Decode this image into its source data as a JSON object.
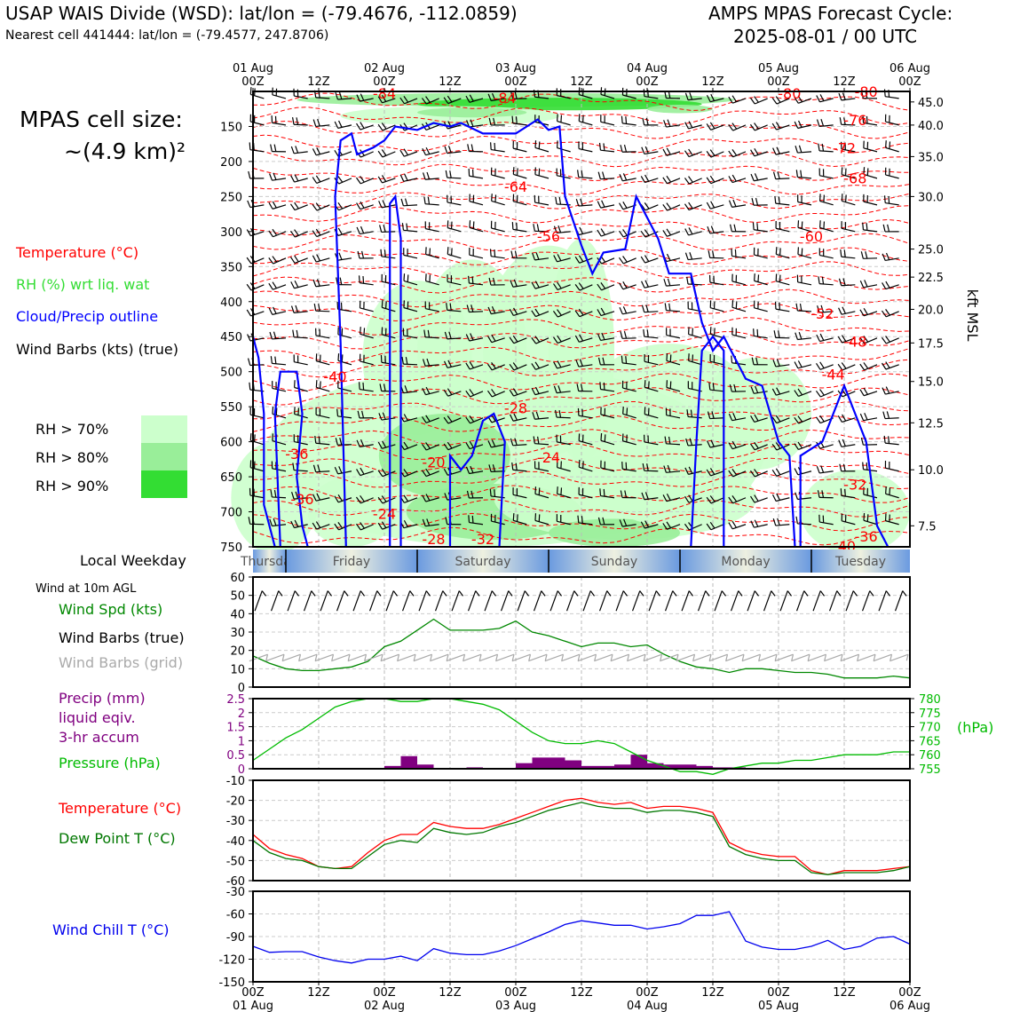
{
  "header": {
    "site_line": "USAP WAIS Divide (WSD): lat/lon = (-79.4676, -112.0859)",
    "cell_line": "Nearest cell 441444: lat/lon = (-79.4577, 247.8706)",
    "cycle_line1": "AMPS MPAS Forecast Cycle:",
    "cycle_line2": "2025-08-01 / 00 UTC"
  },
  "legend": {
    "cell_size_1": "MPAS cell size:",
    "cell_size_2": "~(4.9 km)²",
    "temperature": "Temperature (°C)",
    "rh": "RH (%) wrt liq. wat",
    "cloud": "Cloud/Precip outline",
    "wind_barbs": "Wind Barbs (kts) (true)",
    "rh70": "RH > 70%",
    "rh80": "RH > 80%",
    "rh90": "RH > 90%",
    "local_weekday": "Local Weekday",
    "wind_10m": "Wind at 10m AGL",
    "wind_spd": "Wind Spd (kts)",
    "barbs_true": "Wind Barbs (true)",
    "barbs_grid": "Wind Barbs (grid)",
    "precip1": "Precip (mm)",
    "precip2": "liquid eqiv.",
    "precip3": "3-hr accum",
    "pressure": "Pressure (hPa)",
    "hpa_unit": "(hPa)",
    "temp2": "Temperature (°C)",
    "dewpt": "Dew Point T (°C)",
    "windchill": "Wind Chill T (°C)",
    "kft": "kft MSL"
  },
  "colors": {
    "temp": "#ff0000",
    "rh": "#33cc33",
    "cloud": "#0000ff",
    "wind": "#000000",
    "grid_barb": "#aaaaaa",
    "precip": "#800080",
    "pressure": "#00bb00",
    "dew": "#007700",
    "chill": "#0000ee",
    "rh70": "#ccffcc",
    "rh80": "#99ee99",
    "rh90": "#33dd33"
  },
  "time_axis": {
    "top_dates": [
      "01 Aug",
      "",
      "02 Aug",
      "",
      "03 Aug",
      "",
      "04 Aug",
      "",
      "05 Aug",
      "",
      "06 Aug"
    ],
    "ticks": [
      "00Z",
      "12Z",
      "00Z",
      "12Z",
      "00Z",
      "12Z",
      "00Z",
      "12Z",
      "00Z",
      "12Z",
      "00Z"
    ],
    "bottom_dates": [
      "01 Aug",
      "",
      "02 Aug",
      "",
      "03 Aug",
      "",
      "04 Aug",
      "",
      "05 Aug",
      "",
      "06 Aug"
    ]
  },
  "weekdays": [
    "Thursday",
    "Friday",
    "Saturday",
    "Sunday",
    "Monday",
    "Tuesday"
  ],
  "chart_data": [
    {
      "type": "heatmap",
      "name": "cross-section",
      "ylabel_left": "hPa",
      "ylabel_right": "kft MSL",
      "pressure_levels": [
        150,
        200,
        250,
        300,
        350,
        400,
        450,
        500,
        550,
        600,
        650,
        700,
        750
      ],
      "height_ticks": [
        "45.0",
        "40.0",
        "35.0",
        "30.0",
        "25.0",
        "22.5",
        "20.0",
        "17.5",
        "15.0",
        "12.5",
        "10.0",
        "7.5"
      ],
      "height_tick_pressures": [
        115,
        148,
        193,
        250,
        325,
        365,
        411,
        459,
        514,
        573,
        640,
        720
      ],
      "temp_labels": [
        {
          "text": "-84",
          "hour": 24,
          "p": 104
        },
        {
          "text": "-84",
          "hour": 46,
          "p": 110
        },
        {
          "text": "-80",
          "hour": 98,
          "p": 104
        },
        {
          "text": "-80",
          "hour": 112,
          "p": 101
        },
        {
          "text": "-76",
          "hour": 110,
          "p": 142
        },
        {
          "text": "-72",
          "hour": 108,
          "p": 182
        },
        {
          "text": "-68",
          "hour": 110,
          "p": 225
        },
        {
          "text": "-64",
          "hour": 48,
          "p": 237
        },
        {
          "text": "-60",
          "hour": 102,
          "p": 308
        },
        {
          "text": "-56",
          "hour": 54,
          "p": 308
        },
        {
          "text": "-52",
          "hour": 104,
          "p": 418
        },
        {
          "text": "-48",
          "hour": 110,
          "p": 458
        },
        {
          "text": "-44",
          "hour": 106,
          "p": 505
        },
        {
          "text": "-40",
          "hour": 15,
          "p": 508
        },
        {
          "text": "-28",
          "hour": 48,
          "p": 553
        },
        {
          "text": "-36",
          "hour": 8,
          "p": 618
        },
        {
          "text": "-20",
          "hour": 33,
          "p": 630
        },
        {
          "text": "-24",
          "hour": 54,
          "p": 623
        },
        {
          "text": "-32",
          "hour": 110,
          "p": 662
        },
        {
          "text": "-36",
          "hour": 9,
          "p": 683
        },
        {
          "text": "-24",
          "hour": 24,
          "p": 704
        },
        {
          "text": "-28",
          "hour": 33,
          "p": 740
        },
        {
          "text": "-32",
          "hour": 42,
          "p": 740
        },
        {
          "text": "-36",
          "hour": 112,
          "p": 736
        },
        {
          "text": "-40",
          "hour": 108,
          "p": 750
        }
      ]
    },
    {
      "type": "line",
      "name": "wind-10m",
      "ylim": [
        0,
        60
      ],
      "yticks": [
        0,
        10,
        20,
        30,
        40,
        50,
        60
      ],
      "x_hours": [
        0,
        3,
        6,
        9,
        12,
        15,
        18,
        21,
        24,
        27,
        30,
        33,
        36,
        39,
        42,
        45,
        48,
        51,
        54,
        57,
        60,
        63,
        66,
        69,
        72,
        75,
        78,
        81,
        84,
        87,
        90,
        93,
        96,
        99,
        102,
        105,
        108,
        111,
        114,
        117,
        120
      ],
      "series": [
        {
          "name": "Wind Spd (kts)",
          "values": [
            17,
            13,
            10,
            9,
            9,
            10,
            11,
            14,
            22,
            25,
            31,
            37,
            31,
            31,
            31,
            32,
            36,
            30,
            28,
            25,
            22,
            24,
            24,
            22,
            23,
            18,
            14,
            11,
            10,
            8,
            10,
            10,
            9,
            8,
            8,
            7,
            5,
            5,
            5,
            6,
            5
          ]
        }
      ]
    },
    {
      "type": "bar",
      "name": "precip-pressure",
      "ylim": [
        0,
        2.5
      ],
      "yticks": [
        0,
        0.5,
        1.0,
        1.5,
        2.0,
        2.5
      ],
      "y2lim": [
        755,
        780
      ],
      "y2ticks": [
        755,
        760,
        765,
        770,
        775,
        780
      ],
      "x_hours": [
        24,
        27,
        30,
        39,
        48,
        51,
        54,
        57,
        60,
        63,
        66,
        69,
        72,
        75,
        78,
        81,
        84,
        87
      ],
      "values": [
        0.1,
        0.45,
        0.15,
        0.05,
        0.2,
        0.4,
        0.4,
        0.3,
        0.1,
        0.1,
        0.15,
        0.5,
        0.2,
        0.15,
        0.15,
        0.1,
        0.05,
        0.05
      ],
      "pressure_hours": [
        0,
        3,
        6,
        9,
        12,
        15,
        18,
        21,
        24,
        27,
        30,
        33,
        36,
        39,
        42,
        45,
        48,
        51,
        54,
        57,
        60,
        63,
        66,
        69,
        72,
        75,
        78,
        81,
        84,
        87,
        90,
        93,
        96,
        99,
        102,
        105,
        108,
        111,
        114,
        117,
        120
      ],
      "pressure": [
        758,
        762,
        766,
        769,
        773,
        777,
        779,
        780,
        780,
        779,
        779,
        780,
        780,
        779,
        778,
        776,
        772,
        768,
        765,
        764,
        764,
        765,
        764,
        761,
        758,
        756,
        754,
        754,
        753,
        755,
        756,
        757,
        757,
        758,
        758,
        759,
        760,
        760,
        760,
        761,
        761
      ]
    },
    {
      "type": "line",
      "name": "temp-dew",
      "ylim": [
        -60,
        -10
      ],
      "yticks": [
        -60,
        -50,
        -40,
        -30,
        -20,
        -10
      ],
      "x_hours": [
        0,
        3,
        6,
        9,
        12,
        15,
        18,
        21,
        24,
        27,
        30,
        33,
        36,
        39,
        42,
        45,
        48,
        51,
        54,
        57,
        60,
        63,
        66,
        69,
        72,
        75,
        78,
        81,
        84,
        87,
        90,
        93,
        96,
        99,
        102,
        105,
        108,
        111,
        114,
        117,
        120
      ],
      "series": [
        {
          "name": "Temperature (°C)",
          "values": [
            -37,
            -44,
            -47,
            -49,
            -53,
            -54,
            -53,
            -46,
            -40,
            -37,
            -37,
            -31,
            -33,
            -34,
            -34,
            -32,
            -29,
            -26,
            -23,
            -20,
            -19,
            -21,
            -22,
            -21,
            -24,
            -23,
            -23,
            -24,
            -26,
            -41,
            -45,
            -47,
            -48,
            -48,
            -55,
            -57,
            -55,
            -55,
            -55,
            -54,
            -53
          ]
        },
        {
          "name": "Dew Point T (°C)",
          "values": [
            -40,
            -46,
            -49,
            -50,
            -53,
            -54,
            -54,
            -48,
            -42,
            -40,
            -41,
            -34,
            -36,
            -37,
            -36,
            -33,
            -31,
            -28,
            -25,
            -23,
            -21,
            -23,
            -24,
            -24,
            -26,
            -25,
            -25,
            -26,
            -28,
            -43,
            -47,
            -49,
            -50,
            -50,
            -56,
            -57,
            -56,
            -56,
            -56,
            -55,
            -53
          ]
        }
      ]
    },
    {
      "type": "line",
      "name": "wind-chill",
      "ylim": [
        -150,
        -30
      ],
      "yticks": [
        -150,
        -120,
        -90,
        -60,
        -30
      ],
      "x_hours": [
        0,
        3,
        6,
        9,
        12,
        15,
        18,
        21,
        24,
        27,
        30,
        33,
        36,
        39,
        42,
        45,
        48,
        51,
        54,
        57,
        60,
        63,
        66,
        69,
        72,
        75,
        78,
        81,
        84,
        87,
        90,
        93,
        96,
        99,
        102,
        105,
        108,
        111,
        114,
        117,
        120
      ],
      "series": [
        {
          "name": "Wind Chill T (°C)",
          "values": [
            -103,
            -111,
            -110,
            -110,
            -117,
            -122,
            -125,
            -120,
            -120,
            -116,
            -122,
            -106,
            -112,
            -114,
            -114,
            -109,
            -102,
            -93,
            -84,
            -74,
            -69,
            -72,
            -75,
            -75,
            -80,
            -77,
            -73,
            -62,
            -62,
            -57,
            -96,
            -104,
            -107,
            -107,
            -103,
            -95,
            -107,
            -103,
            -92,
            -90,
            -100
          ]
        }
      ]
    }
  ]
}
